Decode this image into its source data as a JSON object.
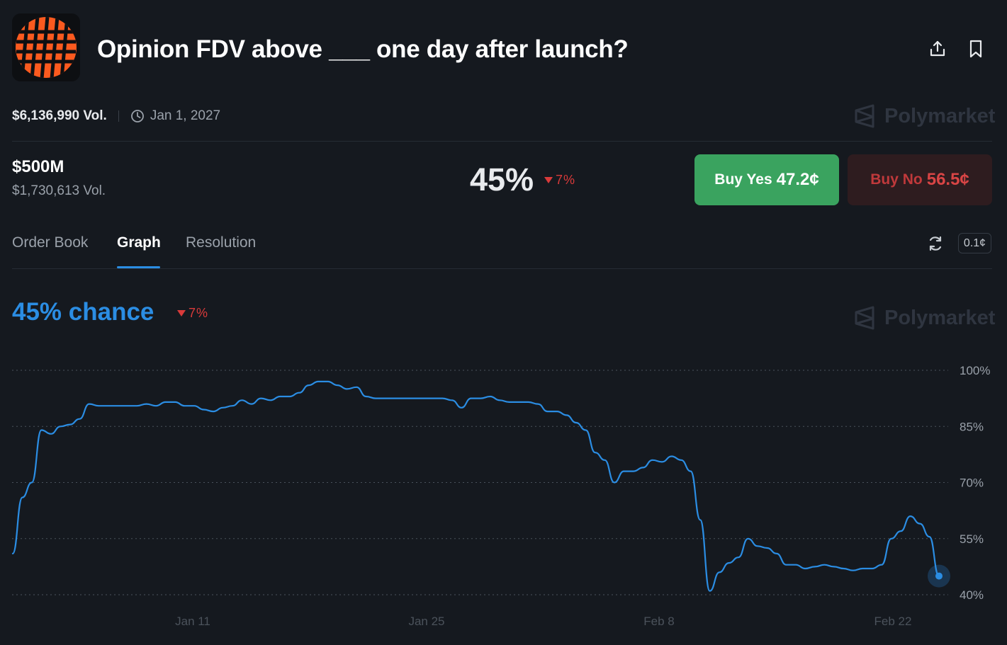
{
  "header": {
    "title": "Opinion FDV above ___ one day after launch?",
    "logo_icon": "opinion-logo",
    "share_icon": "share-icon",
    "bookmark_icon": "bookmark-icon"
  },
  "meta": {
    "volume": "$6,136,990 Vol.",
    "end_date": "Jan 1, 2027",
    "brand": "Polymarket"
  },
  "outcome": {
    "name": "$500M",
    "volume": "$1,730,613 Vol.",
    "probability": "45%",
    "change": "7%",
    "buy_yes_label": "Buy Yes",
    "buy_yes_price": "47.2¢",
    "buy_no_label": "Buy No",
    "buy_no_price": "56.5¢"
  },
  "tabs": {
    "items": [
      "Order Book",
      "Graph",
      "Resolution"
    ],
    "active": "Graph",
    "tick_size": "0.1¢"
  },
  "graph": {
    "chance_label": "45% chance",
    "change": "7%",
    "brand": "Polymarket"
  },
  "colors": {
    "accent_blue": "#2b8de3",
    "yes_green": "#3aa35f",
    "no_red": "#d94545",
    "down_red": "#d93a3a",
    "background": "#15191f"
  },
  "chart_data": {
    "type": "line",
    "x_tick_labels": [
      "Jan 11",
      "Jan 25",
      "Feb 8",
      "Feb 22"
    ],
    "y_tick_labels": [
      "100%",
      "85%",
      "70%",
      "55%",
      "40%"
    ],
    "ylim": [
      40,
      100
    ],
    "series": [
      {
        "values": [
          51,
          66,
          70,
          84,
          83,
          85,
          85.5,
          87,
          91,
          90.5,
          90.5,
          90.5,
          90.5,
          90.5,
          91,
          90.5,
          91.5,
          91.5,
          90.5,
          90.5,
          89.5,
          89,
          90,
          90.5,
          92,
          91,
          92.5,
          92,
          93,
          93,
          94,
          96,
          97,
          97,
          96,
          95,
          95.5,
          93,
          92.5,
          92.5,
          92.5,
          92.5,
          92.5,
          92.5,
          92.5,
          92.5,
          92,
          90,
          92.5,
          92.5,
          93,
          92,
          91.5,
          91.5,
          91.5,
          91,
          89,
          89,
          88,
          86,
          84,
          78,
          76,
          70,
          73,
          73,
          74,
          76,
          75.5,
          77,
          76,
          73,
          60,
          41,
          46,
          48.5,
          50,
          55,
          53,
          52.5,
          51,
          48,
          48,
          47,
          47.5,
          48,
          47.5,
          47,
          46.5,
          47,
          47,
          48,
          55,
          57,
          61,
          59,
          55.5,
          45
        ]
      }
    ]
  }
}
